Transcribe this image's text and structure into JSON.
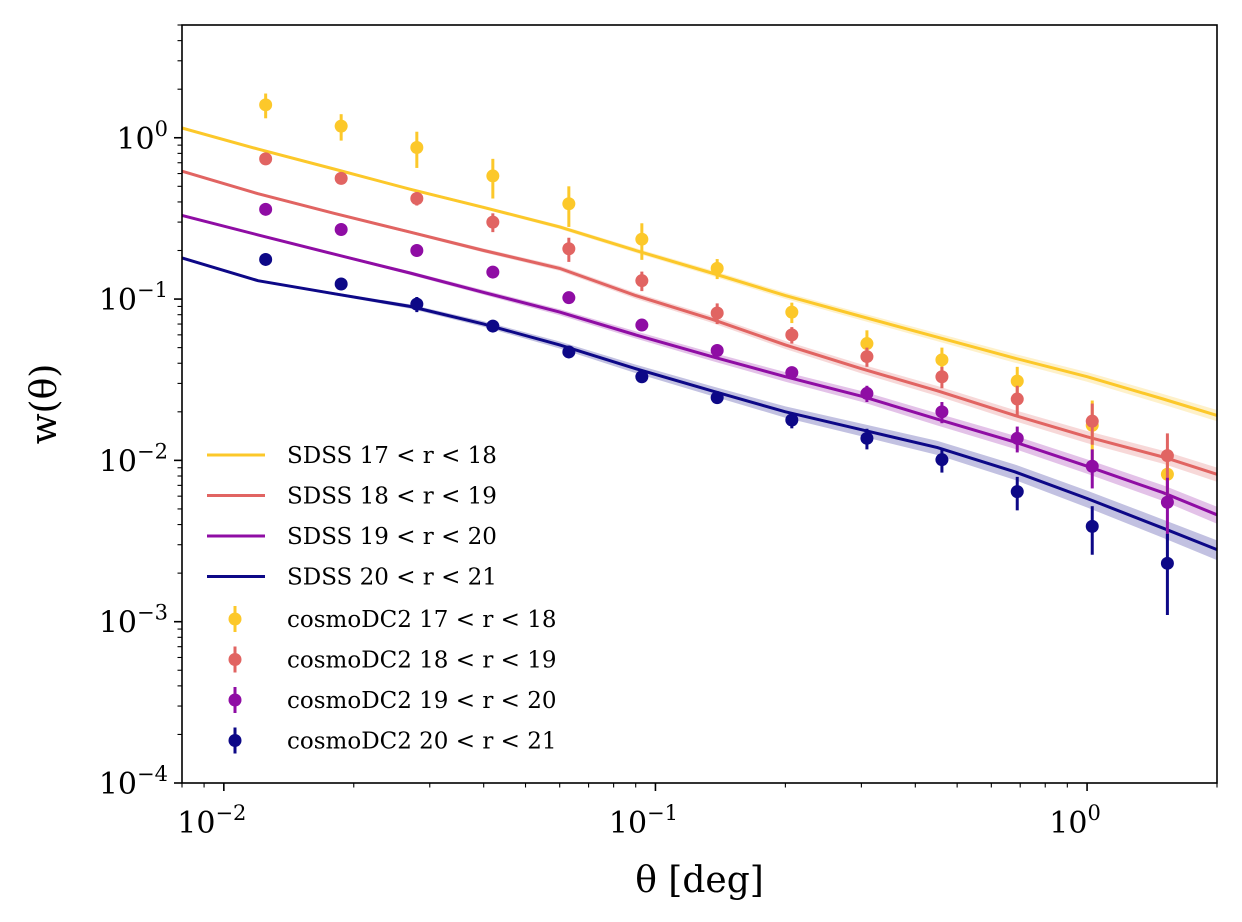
{
  "chart_data": {
    "type": "line",
    "xscale": "log",
    "yscale": "log",
    "xlim": [
      0.008,
      2.0
    ],
    "ylim": [
      0.0001,
      5.0
    ],
    "xlabel": "θ  [deg]",
    "ylabel": "w(θ)",
    "x_ticks": [
      {
        "value": 0.01,
        "base": "10",
        "exp": "−2"
      },
      {
        "value": 0.1,
        "base": "10",
        "exp": "−1"
      },
      {
        "value": 1.0,
        "base": "10",
        "exp": "0"
      }
    ],
    "y_ticks": [
      {
        "value": 1.0,
        "base": "10",
        "exp": "0"
      },
      {
        "value": 0.1,
        "base": "10",
        "exp": "−1"
      },
      {
        "value": 0.01,
        "base": "10",
        "exp": "−2"
      },
      {
        "value": 0.001,
        "base": "10",
        "exp": "−3"
      },
      {
        "value": 0.0001,
        "base": "10",
        "exp": "−4"
      }
    ],
    "legend_position": "lower-left",
    "line_x": [
      0.008,
      0.012,
      0.018,
      0.027,
      0.04,
      0.06,
      0.09,
      0.135,
      0.2,
      0.3,
      0.45,
      0.68,
      1.0,
      1.5,
      2.0
    ],
    "lines": [
      {
        "name": "SDSS",
        "range": "17 < r < 18",
        "color": "#fcc82a",
        "y": [
          1.15,
          0.85,
          0.64,
          0.48,
          0.37,
          0.28,
          0.2,
          0.145,
          0.105,
          0.078,
          0.058,
          0.043,
          0.033,
          0.024,
          0.019
        ],
        "band": 0.08
      },
      {
        "name": "SDSS",
        "range": "18 < r < 19",
        "color": "#e16462",
        "y": [
          0.62,
          0.45,
          0.34,
          0.26,
          0.2,
          0.155,
          0.105,
          0.075,
          0.052,
          0.037,
          0.027,
          0.019,
          0.014,
          0.0105,
          0.0082
        ],
        "band": 0.1
      },
      {
        "name": "SDSS",
        "range": "19 < r < 20",
        "color": "#8f0da4",
        "y": [
          0.33,
          0.25,
          0.19,
          0.145,
          0.11,
          0.083,
          0.06,
          0.044,
          0.033,
          0.025,
          0.018,
          0.013,
          0.0092,
          0.0063,
          0.0046
        ],
        "band": 0.12
      },
      {
        "name": "SDSS",
        "range": "20 < r < 21",
        "color": "#0d0887",
        "y": [
          0.18,
          0.13,
          0.108,
          0.09,
          0.07,
          0.052,
          0.037,
          0.027,
          0.02,
          0.0155,
          0.012,
          0.0085,
          0.0058,
          0.0038,
          0.0028
        ],
        "band": 0.14
      }
    ],
    "points": [
      {
        "name": "cosmoDC2",
        "range": "17 < r < 18",
        "color": "#fcc82a",
        "x": [
          0.0125,
          0.0187,
          0.028,
          0.042,
          0.063,
          0.093,
          0.139,
          0.207,
          0.309,
          0.461,
          0.689,
          1.028,
          1.535
        ],
        "y": [
          1.6,
          1.18,
          0.87,
          0.58,
          0.39,
          0.235,
          0.155,
          0.083,
          0.053,
          0.042,
          0.031,
          0.0165,
          0.0082
        ],
        "err": [
          0.28,
          0.22,
          0.22,
          0.16,
          0.11,
          0.06,
          0.022,
          0.012,
          0.011,
          0.008,
          0.007,
          0.007,
          0.003
        ]
      },
      {
        "name": "cosmoDC2",
        "range": "18 < r < 19",
        "color": "#e16462",
        "x": [
          0.0125,
          0.0187,
          0.028,
          0.042,
          0.063,
          0.093,
          0.139,
          0.207,
          0.309,
          0.461,
          0.689,
          1.028,
          1.535
        ],
        "y": [
          0.74,
          0.56,
          0.42,
          0.3,
          0.205,
          0.13,
          0.082,
          0.06,
          0.044,
          0.033,
          0.024,
          0.0175,
          0.0107
        ],
        "err": [
          0.03,
          0.02,
          0.04,
          0.04,
          0.035,
          0.018,
          0.012,
          0.007,
          0.006,
          0.005,
          0.005,
          0.005,
          0.004
        ]
      },
      {
        "name": "cosmoDC2",
        "range": "19 < r < 20",
        "color": "#8f0da4",
        "x": [
          0.0125,
          0.0187,
          0.028,
          0.042,
          0.063,
          0.093,
          0.139,
          0.207,
          0.309,
          0.461,
          0.689,
          1.028,
          1.535
        ],
        "y": [
          0.36,
          0.27,
          0.2,
          0.147,
          0.102,
          0.069,
          0.048,
          0.035,
          0.026,
          0.02,
          0.0137,
          0.0092,
          0.0055
        ],
        "err": [
          0.01,
          0.01,
          0.01,
          0.008,
          0.006,
          0.005,
          0.004,
          0.003,
          0.003,
          0.003,
          0.0025,
          0.0025,
          0.0023
        ]
      },
      {
        "name": "cosmoDC2",
        "range": "20 < r < 21",
        "color": "#0d0887",
        "x": [
          0.0125,
          0.0187,
          0.028,
          0.042,
          0.063,
          0.093,
          0.139,
          0.207,
          0.309,
          0.461,
          0.689,
          1.028,
          1.535
        ],
        "y": [
          0.176,
          0.124,
          0.093,
          0.068,
          0.047,
          0.033,
          0.0245,
          0.0178,
          0.0137,
          0.0101,
          0.0064,
          0.0039,
          0.0023
        ],
        "err": [
          0.005,
          0.005,
          0.01,
          0.004,
          0.003,
          0.002,
          0.002,
          0.002,
          0.002,
          0.0017,
          0.0015,
          0.0013,
          0.0012
        ]
      }
    ]
  }
}
